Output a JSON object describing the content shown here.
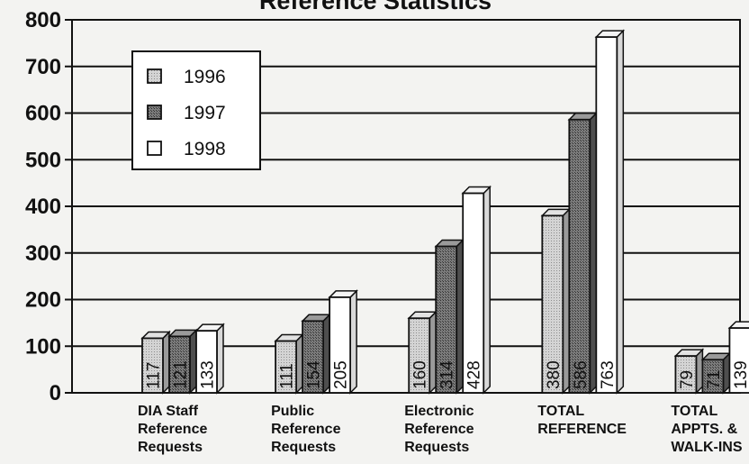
{
  "chart_data": {
    "type": "bar",
    "title": "Reference Statistics",
    "categories": [
      [
        "DIA Staff",
        "Reference",
        "Requests"
      ],
      [
        "Public",
        "Reference",
        "Requests"
      ],
      [
        "Electronic",
        "Reference",
        "Requests"
      ],
      [
        "TOTAL",
        "REFERENCE"
      ],
      [
        "TOTAL",
        "APPTS. &",
        "WALK-INS"
      ]
    ],
    "series": [
      {
        "name": "1996",
        "values": [
          117,
          111,
          160,
          380,
          79
        ],
        "color": "#c8c8c8"
      },
      {
        "name": "1997",
        "values": [
          121,
          154,
          314,
          586,
          71
        ],
        "color": "#7a7a7a"
      },
      {
        "name": "1998",
        "values": [
          133,
          205,
          428,
          763,
          139
        ],
        "color": "#ffffff"
      }
    ],
    "ylim": [
      0,
      800
    ],
    "yticks": [
      0,
      100,
      200,
      300,
      400,
      500,
      600,
      700,
      800
    ],
    "grid": true,
    "legend_position": "top-left",
    "data_labels": "inside-bar-vertical"
  }
}
